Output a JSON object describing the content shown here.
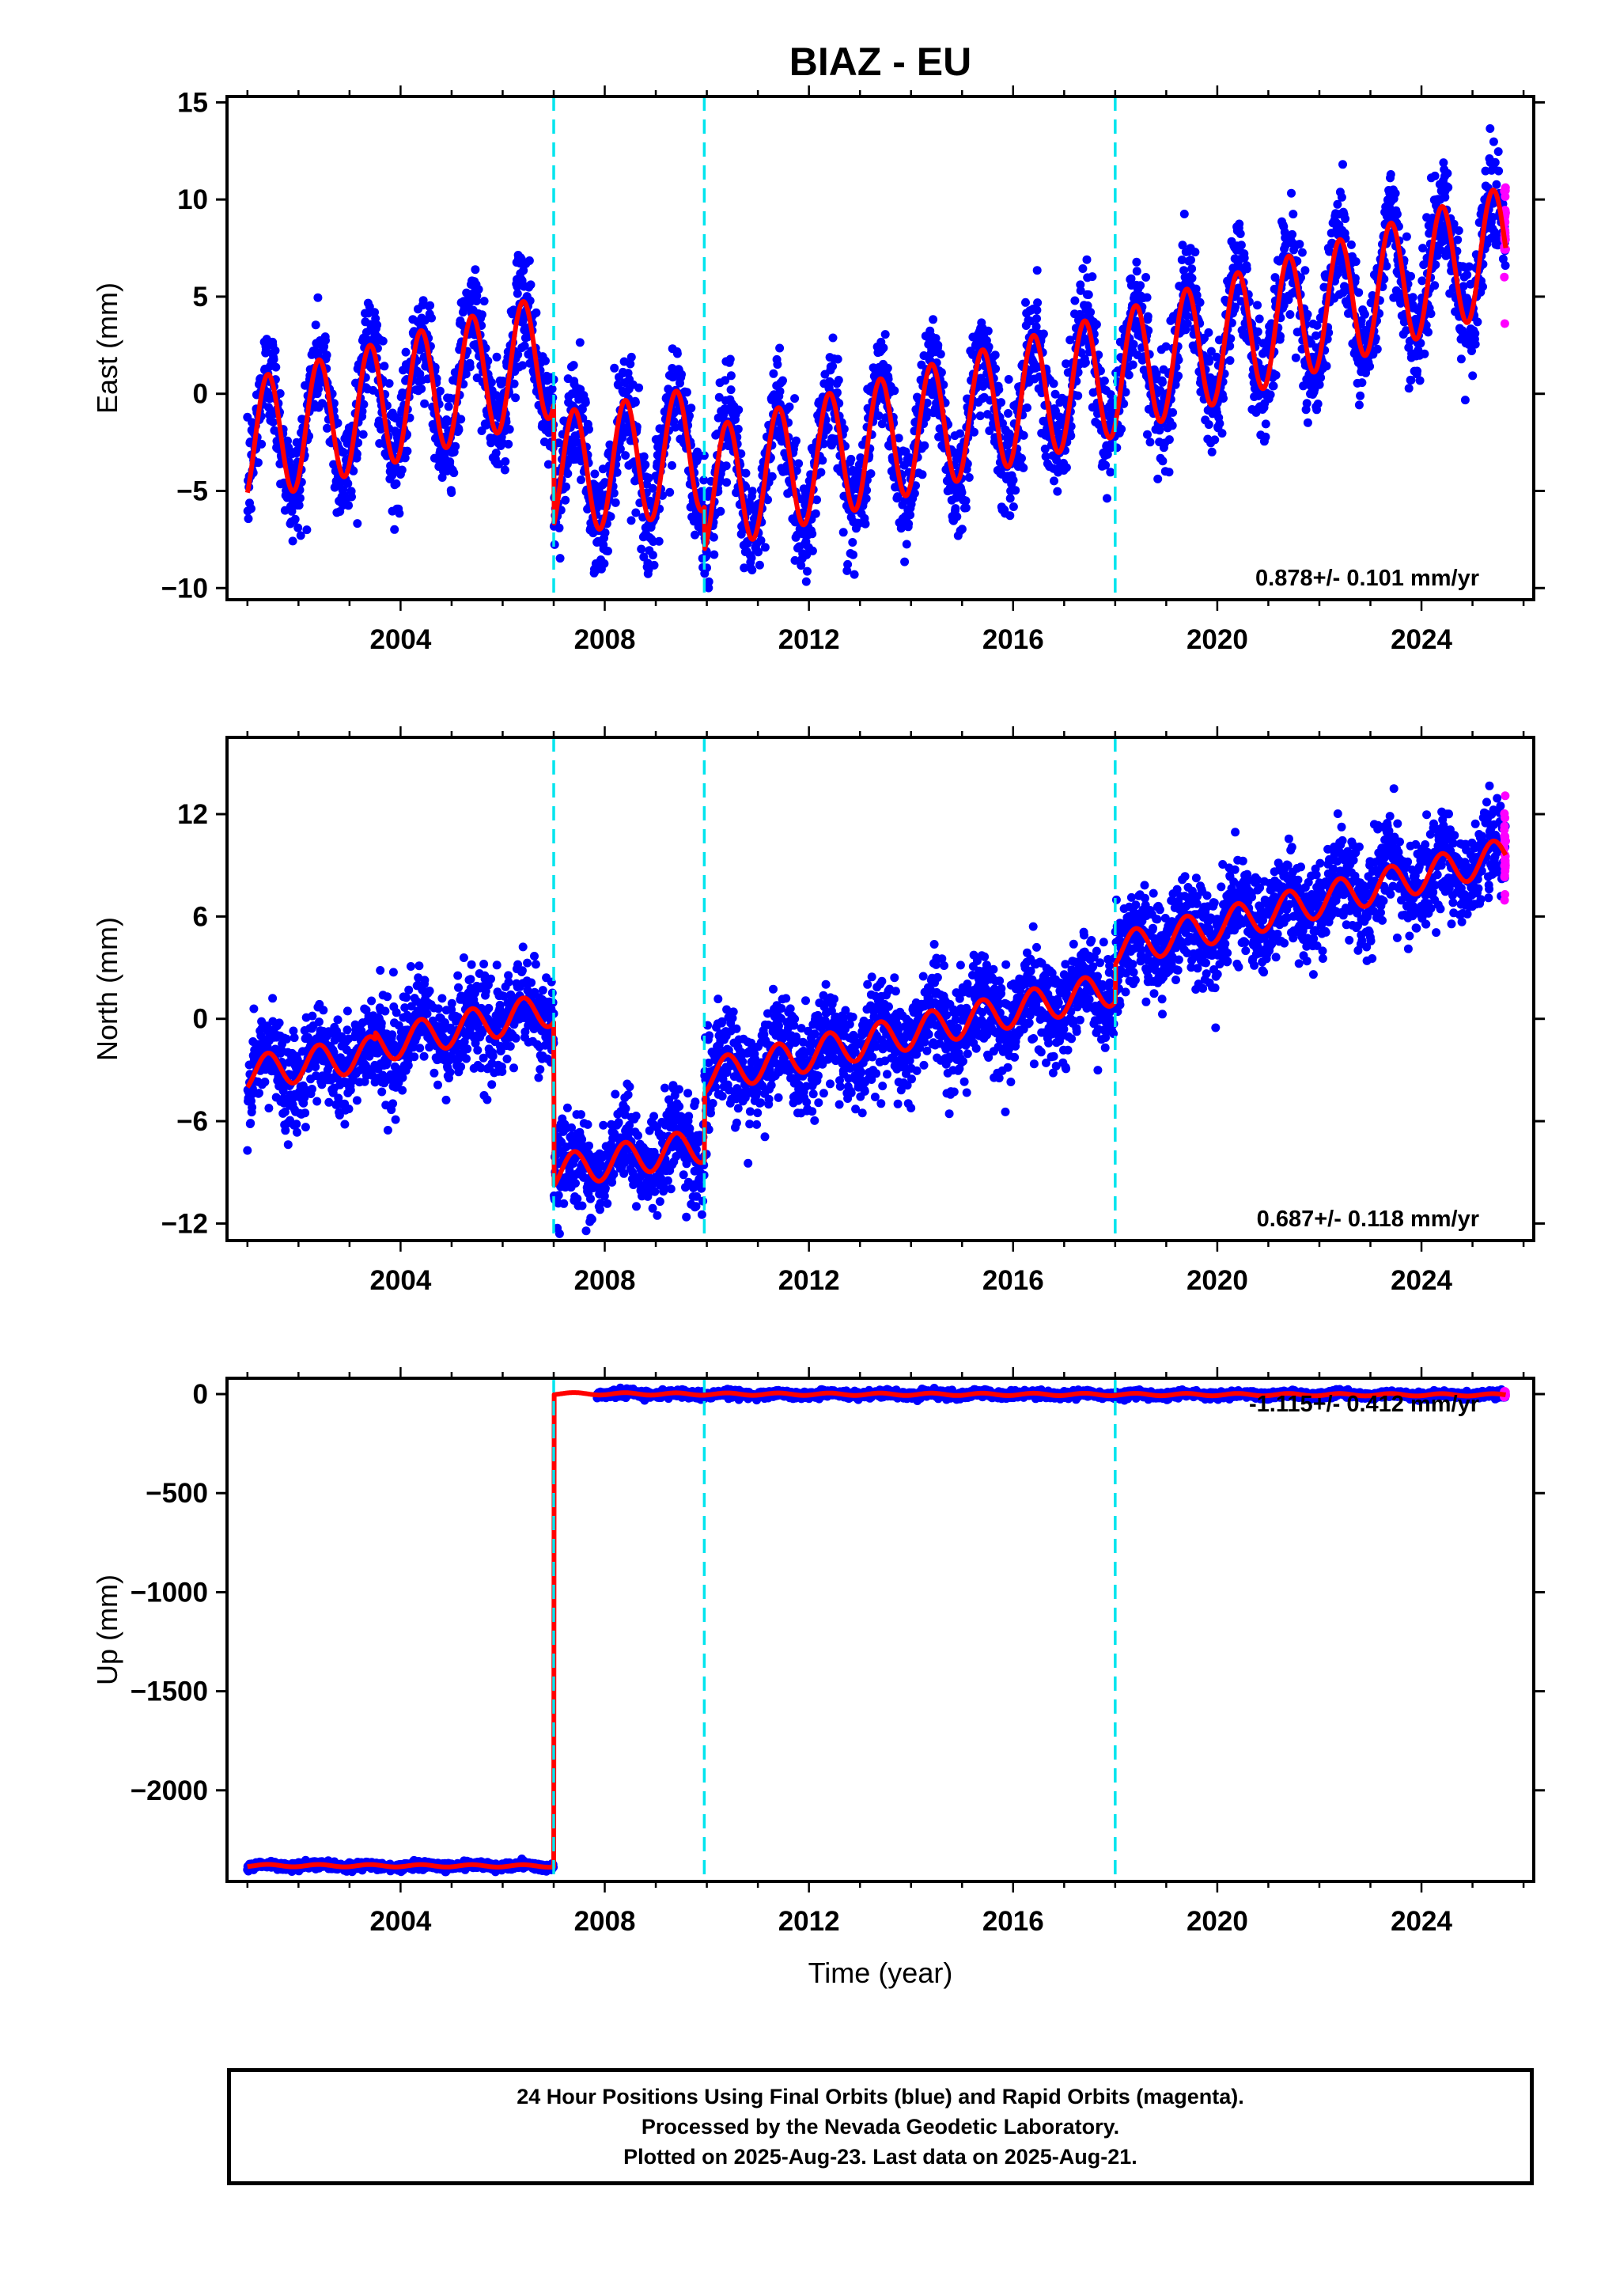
{
  "chart_data": {
    "type": "scatter",
    "title": "BIAZ - EU",
    "x": {
      "label": "Time (year)",
      "range": [
        2000.6,
        2026.2
      ],
      "ticks": [
        2004,
        2008,
        2012,
        2016,
        2020,
        2024
      ],
      "tick_labels": [
        "2004",
        "2008",
        "2012",
        "2016",
        "2020",
        "2024"
      ]
    },
    "breaks": [
      2007.0,
      2009.95,
      2018.0
    ],
    "series_info": {
      "final_orbits_color": "#0000ff",
      "rapid_orbits_color": "#ff00ff",
      "model_color": "#ff0000",
      "break_line_color": "#00e5ee"
    },
    "panels": [
      {
        "id": "east",
        "ylabel": "East (mm)",
        "ylim": [
          -10.6,
          15.3
        ],
        "yticks": [
          -10,
          -5,
          0,
          5,
          10,
          15
        ],
        "ytick_labels": [
          "−10",
          "−5",
          "0",
          "5",
          "10",
          "15"
        ],
        "rate_label": "0.878+/- 0.101 mm/yr",
        "seasonal_amplitude": 3.2,
        "noise": 1.4,
        "segments": [
          {
            "start": 2001.0,
            "end": 2007.0,
            "y_start": -2.5,
            "y_end": 2.0
          },
          {
            "start": 2007.0,
            "end": 2009.95,
            "y_start": -4.2,
            "y_end": -2.8
          },
          {
            "start": 2009.95,
            "end": 2018.0,
            "y_start": -5.0,
            "y_end": 1.0
          },
          {
            "start": 2018.0,
            "end": 2025.65,
            "y_start": 1.0,
            "y_end": 7.5
          }
        ]
      },
      {
        "id": "north",
        "ylabel": "North (mm)",
        "ylim": [
          -13.0,
          16.5
        ],
        "yticks": [
          -12,
          -6,
          0,
          6,
          12
        ],
        "ytick_labels": [
          "−12",
          "−6",
          "0",
          "6",
          "12"
        ],
        "rate_label": "0.687+/- 0.118 mm/yr",
        "seasonal_amplitude": 1.0,
        "noise": 1.4,
        "segments": [
          {
            "start": 2001.0,
            "end": 2003.5,
            "y_start": -3.2,
            "y_end": -2.0
          },
          {
            "start": 2003.5,
            "end": 2007.0,
            "y_start": -1.6,
            "y_end": 0.6
          },
          {
            "start": 2007.0,
            "end": 2009.95,
            "y_start": -9.0,
            "y_end": -7.4
          },
          {
            "start": 2009.95,
            "end": 2018.0,
            "y_start": -3.4,
            "y_end": 1.8
          },
          {
            "start": 2018.0,
            "end": 2025.65,
            "y_start": 4.0,
            "y_end": 9.6
          }
        ]
      },
      {
        "id": "up",
        "ylabel": "Up (mm)",
        "ylim": [
          -2460,
          80
        ],
        "yticks": [
          -2000,
          -1500,
          -1000,
          -500,
          0
        ],
        "ytick_labels": [
          "−2000",
          "−1500",
          "−1000",
          "−500",
          "0"
        ],
        "rate_label": "-1.115+/- 0.412 mm/yr",
        "seasonal_amplitude": 6,
        "noise": 9,
        "segments": [
          {
            "start": 2001.0,
            "end": 2007.0,
            "y_start": -2380,
            "y_end": -2382
          },
          {
            "start": 2007.0,
            "end": 2009.95,
            "y_start": 2,
            "y_end": 0,
            "data_start": 2007.85
          },
          {
            "start": 2009.95,
            "end": 2018.0,
            "y_start": 0,
            "y_end": -2
          },
          {
            "start": 2018.0,
            "end": 2025.65,
            "y_start": -2,
            "y_end": -4
          }
        ]
      }
    ],
    "rapid_orbits": {
      "start": 2025.35,
      "end": 2025.65
    }
  },
  "footer": {
    "line1": "24 Hour Positions Using Final Orbits (blue) and Rapid Orbits (magenta).",
    "line2": "Processed by the Nevada Geodetic Laboratory.",
    "line3": "Plotted on 2025-Aug-23. Last data on 2025-Aug-21."
  }
}
